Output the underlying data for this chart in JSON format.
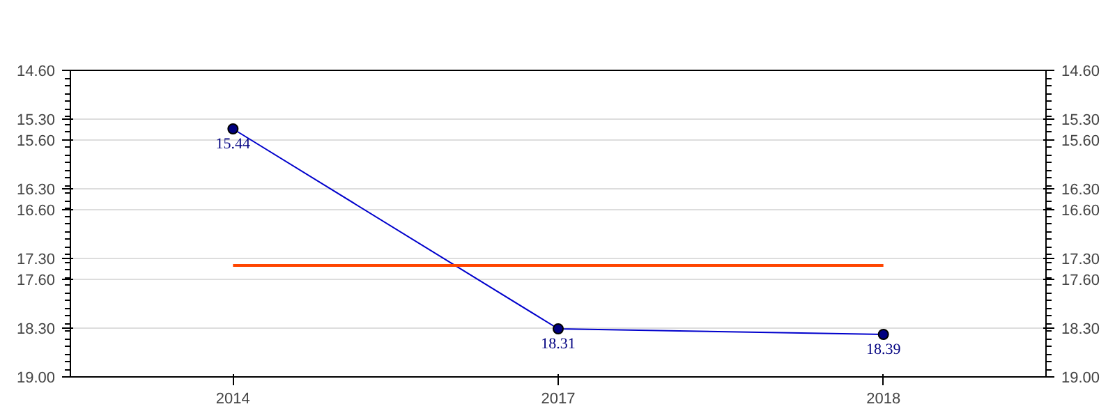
{
  "chart_data": {
    "type": "line",
    "categories": [
      "2014",
      "2017",
      "2018"
    ],
    "series": [
      {
        "color": "#0000cc",
        "values": [
          15.44,
          18.31,
          18.39
        ],
        "marker": "circle",
        "value_labels": [
          "15.44",
          "18.31",
          "18.39"
        ]
      },
      {
        "color": "#ff4500",
        "values": [
          17.4,
          17.4,
          17.4
        ],
        "marker": "none"
      }
    ],
    "ylim": [
      19.0,
      14.6
    ],
    "yticks": [
      {
        "value": 14.6,
        "label": "14.60"
      },
      {
        "value": 15.3,
        "label": "15.30"
      },
      {
        "value": 15.6,
        "label": "15.60"
      },
      {
        "value": 16.3,
        "label": "16.30"
      },
      {
        "value": 16.6,
        "label": "16.60"
      },
      {
        "value": 17.3,
        "label": "17.30"
      },
      {
        "value": 17.6,
        "label": "17.60"
      },
      {
        "value": 18.3,
        "label": "18.30"
      },
      {
        "value": 19.0,
        "label": "19.00"
      }
    ],
    "y2lim": [
      19.0,
      14.6
    ],
    "y2ticks": [
      {
        "value": 14.6,
        "label": "14.60"
      },
      {
        "value": 15.3,
        "label": "15.30"
      },
      {
        "value": 15.6,
        "label": "15.60"
      },
      {
        "value": 16.3,
        "label": "16.30"
      },
      {
        "value": 16.6,
        "label": "16.60"
      },
      {
        "value": 17.3,
        "label": "17.30"
      },
      {
        "value": 17.6,
        "label": "17.60"
      },
      {
        "value": 18.3,
        "label": "18.30"
      },
      {
        "value": 19.0,
        "label": "19.00"
      }
    ],
    "grid": "y"
  }
}
